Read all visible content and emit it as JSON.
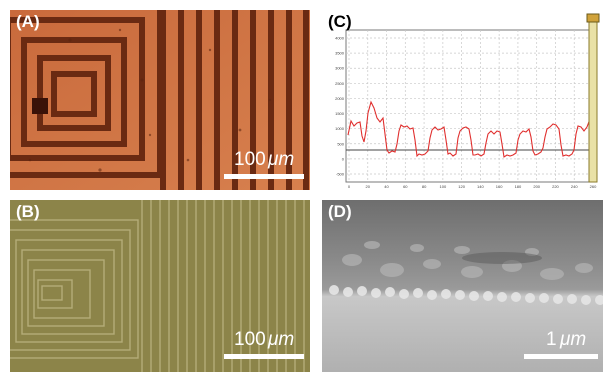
{
  "figure": {
    "panels": [
      {
        "label": "(A)",
        "scale_value": "100",
        "scale_unit": "μm"
      },
      {
        "label": "(B)",
        "scale_value": "100",
        "scale_unit": "μm"
      },
      {
        "label": "(C)"
      },
      {
        "label": "(D)",
        "scale_value": "1",
        "scale_unit": "μm"
      }
    ]
  },
  "profile_plot": {
    "y_ticks": [
      "4000",
      "3500",
      "3000",
      "2500",
      "2000",
      "1500",
      "1000",
      "500",
      "0",
      "-500"
    ],
    "x_ticks": [
      "0",
      "20",
      "40",
      "60",
      "80",
      "100",
      "120",
      "140",
      "160",
      "180",
      "200",
      "220",
      "240",
      "260"
    ],
    "series_color": "#e0302f"
  }
}
